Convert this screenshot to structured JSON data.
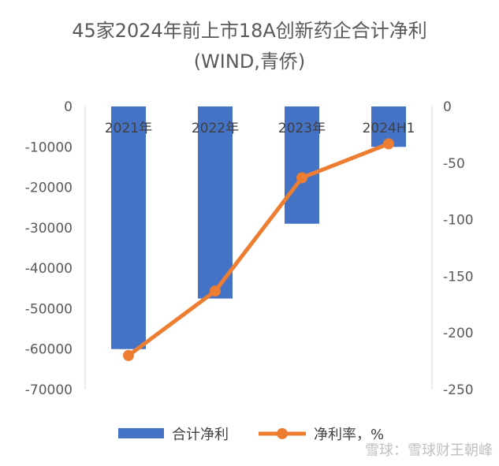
{
  "chart_data": {
    "type": "bar",
    "title": "45家2024年前上市18A创新药企合计净利",
    "subtitle": "(WIND,青侨)",
    "categories": [
      "2021年",
      "2022年",
      "2023年",
      "2024H1"
    ],
    "series": [
      {
        "name": "合计净利",
        "type": "bar",
        "axis": "left",
        "color": "#4472C4",
        "values": [
          -60000,
          -47500,
          -29000,
          -10000
        ]
      },
      {
        "name": "净利率，%",
        "type": "line",
        "axis": "right",
        "color": "#ED7D31",
        "values": [
          -220,
          -163,
          -63,
          -33
        ]
      }
    ],
    "left_axis": {
      "ylim": [
        -70000,
        0
      ],
      "ticks": [
        0,
        -10000,
        -20000,
        -30000,
        -40000,
        -50000,
        -60000,
        -70000
      ]
    },
    "right_axis": {
      "ylim": [
        -250,
        0
      ],
      "ticks": [
        0,
        -50,
        -100,
        -150,
        -200,
        -250
      ]
    },
    "grid": false,
    "legend_position": "bottom"
  },
  "watermark": "雪球：雪球财王朝峰"
}
